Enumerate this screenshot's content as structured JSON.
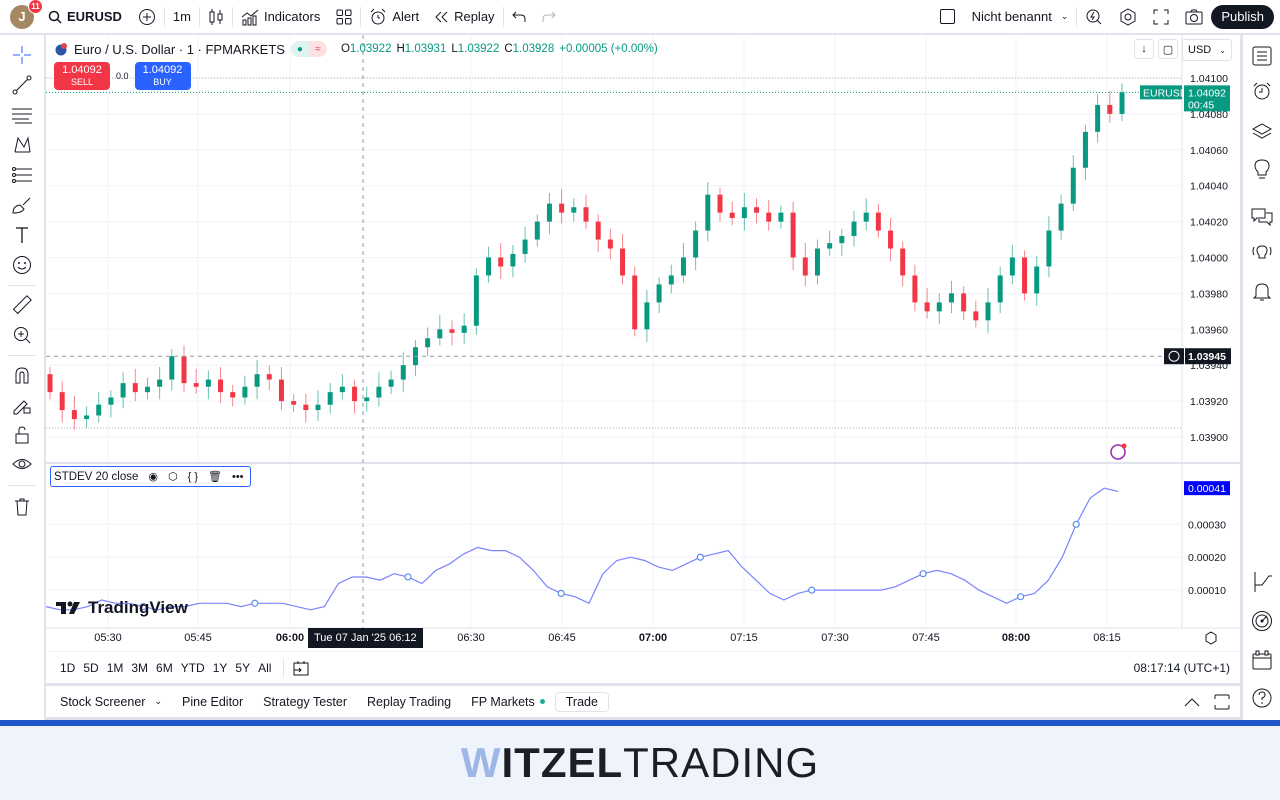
{
  "topbar": {
    "avatar_initial": "J",
    "notification_count": "11",
    "symbol": "EURUSD",
    "interval": "1m",
    "indicators_label": "Indicators",
    "alert_label": "Alert",
    "replay_label": "Replay",
    "layout_name": "Nicht benannt",
    "publish_label": "Publish"
  },
  "legend": {
    "title": "Euro / U.S. Dollar · 1 · FPMARKETS",
    "open_label": "O",
    "open": "1.03922",
    "high_label": "H",
    "high": "1.03931",
    "low_label": "L",
    "low": "1.03922",
    "close_label": "C",
    "close": "1.03928",
    "change": "+0.00005 (+0.00%)"
  },
  "trade": {
    "sell_price": "1.04092",
    "sell_label": "SELL",
    "spread": "0.0",
    "buy_price": "1.04092",
    "buy_label": "BUY"
  },
  "currency": "USD",
  "price_axis": {
    "ticks": [
      "1.04100",
      "1.04080",
      "1.04060",
      "1.04040",
      "1.04020",
      "1.04000",
      "1.03980",
      "1.03960",
      "1.03940",
      "1.03920",
      "1.03900"
    ],
    "last_symbol": "EURUSD",
    "last_price": "1.04092",
    "countdown": "00:45",
    "crosshair_price": "1.03945"
  },
  "indicator": {
    "label": "STDEV 20 close",
    "last_value": "0.00041",
    "ticks": [
      "0.00030",
      "0.00020",
      "0.00010"
    ]
  },
  "time_axis": {
    "ticks": [
      "05:30",
      "05:45",
      "06:00",
      "06:30",
      "06:45",
      "07:00",
      "07:15",
      "07:30",
      "07:45",
      "08:00",
      "08:15"
    ],
    "crosshair_label": "Tue 07 Jan '25   06:12"
  },
  "range_bar": {
    "ranges": [
      "1D",
      "5D",
      "1M",
      "3M",
      "6M",
      "YTD",
      "1Y",
      "5Y",
      "All"
    ],
    "clock": "08:17:14 (UTC+1)"
  },
  "bottom_panel": {
    "tabs": [
      "Stock Screener",
      "Pine Editor",
      "Strategy Tester",
      "Replay Trading",
      "FP Markets",
      "Trade"
    ]
  },
  "watermark": "TradingView",
  "footer": {
    "brand_w": "W",
    "brand_bold": "ITZEL",
    "brand_light": "TRADING"
  },
  "colors": {
    "up": "#089981",
    "down": "#f23645",
    "accent": "#2962ff",
    "stdev_line": "#7b83ff",
    "brand_blue": "#1f57c6"
  },
  "chart_data": {
    "type": "candlestick",
    "symbol": "EURUSD",
    "interval": "1m",
    "ylim": [
      1.03895,
      1.04105
    ],
    "series_close_approx": [
      1.03925,
      1.03915,
      1.0391,
      1.03912,
      1.03918,
      1.03922,
      1.0393,
      1.03925,
      1.03928,
      1.03932,
      1.03945,
      1.0393,
      1.03928,
      1.03932,
      1.03925,
      1.03922,
      1.03928,
      1.03935,
      1.03932,
      1.0392,
      1.03918,
      1.03915,
      1.03918,
      1.03925,
      1.03928,
      1.0392,
      1.03922,
      1.03928,
      1.03932,
      1.0394,
      1.0395,
      1.03955,
      1.0396,
      1.03958,
      1.03962,
      1.0399,
      1.04,
      1.03995,
      1.04002,
      1.0401,
      1.0402,
      1.0403,
      1.04025,
      1.04028,
      1.0402,
      1.0401,
      1.04005,
      1.0399,
      1.0396,
      1.03975,
      1.03985,
      1.0399,
      1.04,
      1.04015,
      1.04035,
      1.04025,
      1.04022,
      1.04028,
      1.04025,
      1.0402,
      1.04025,
      1.04,
      1.0399,
      1.04005,
      1.04008,
      1.04012,
      1.0402,
      1.04025,
      1.04015,
      1.04005,
      1.0399,
      1.03975,
      1.0397,
      1.03975,
      1.0398,
      1.0397,
      1.03965,
      1.03975,
      1.0399,
      1.04,
      1.0398,
      1.03995,
      1.04015,
      1.0403,
      1.0405,
      1.0407,
      1.04085,
      1.0408,
      1.04092
    ],
    "indicator": {
      "name": "STDEV",
      "length": 20,
      "source": "close",
      "last": 0.00041,
      "ylim": [
        0,
        0.00045
      ]
    }
  }
}
